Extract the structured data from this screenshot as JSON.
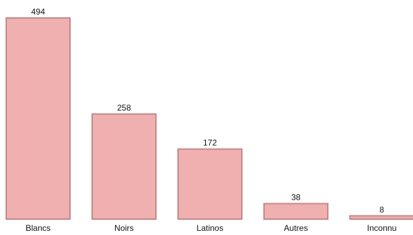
{
  "chart_data": {
    "type": "bar",
    "categories": [
      "Blancs",
      "Noirs",
      "Latinos",
      "Autres",
      "Inconnu"
    ],
    "values": [
      494,
      258,
      172,
      38,
      8
    ],
    "value_labels": [
      "494",
      "258",
      "172",
      "38",
      "8"
    ],
    "title": "",
    "xlabel": "",
    "ylabel": "",
    "ylim": [
      0,
      494
    ],
    "grid": false,
    "legend": "none",
    "bar_color": "#f0b0b0",
    "bar_border_color": "#c98787"
  }
}
